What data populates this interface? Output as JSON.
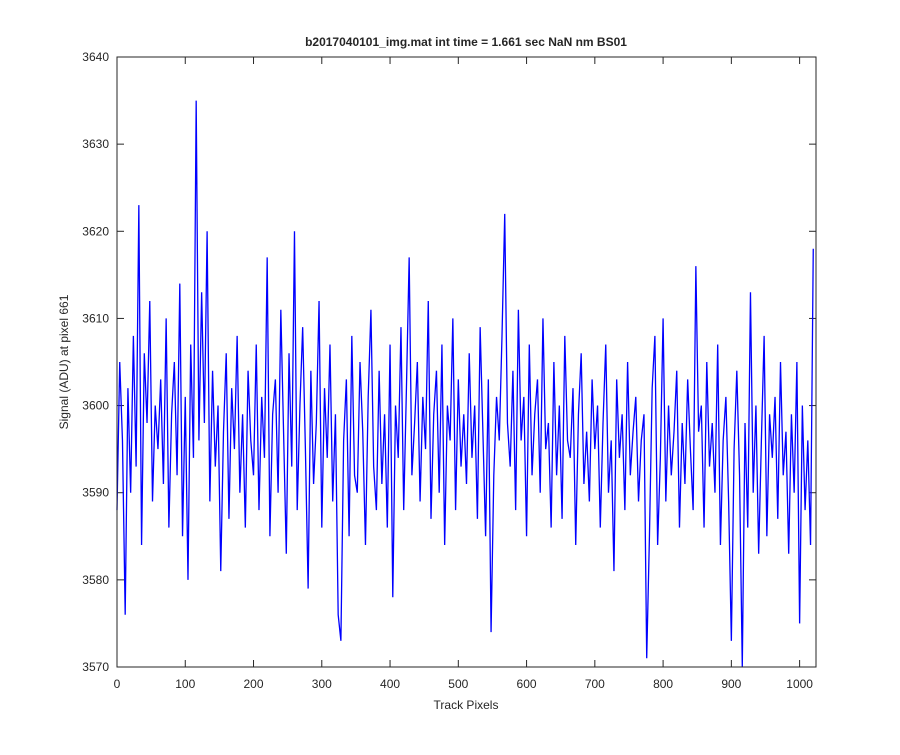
{
  "chart_data": {
    "type": "line",
    "title": "b2017040101_img.mat int time = 1.661 sec  NaN nm BS01",
    "x_label": "Track Pixels",
    "y_label": "Signal (ADU) at pixel 661",
    "xlim": [
      0,
      1024
    ],
    "ylim": [
      3570,
      3640
    ],
    "xticks": [
      0,
      100,
      200,
      300,
      400,
      500,
      600,
      700,
      800,
      900,
      1000
    ],
    "yticks": [
      3570,
      3580,
      3590,
      3600,
      3610,
      3620,
      3630,
      3640
    ],
    "x": [
      0,
      4,
      8,
      12,
      16,
      20,
      24,
      28,
      32,
      36,
      40,
      44,
      48,
      52,
      56,
      60,
      64,
      68,
      72,
      76,
      80,
      84,
      88,
      92,
      96,
      100,
      104,
      108,
      112,
      116,
      120,
      124,
      128,
      132,
      136,
      140,
      144,
      148,
      152,
      156,
      160,
      164,
      168,
      172,
      176,
      180,
      184,
      188,
      192,
      196,
      200,
      204,
      208,
      212,
      216,
      220,
      224,
      228,
      232,
      236,
      240,
      244,
      248,
      252,
      256,
      260,
      264,
      268,
      272,
      276,
      280,
      284,
      288,
      292,
      296,
      300,
      304,
      308,
      312,
      316,
      320,
      324,
      328,
      332,
      336,
      340,
      344,
      348,
      352,
      356,
      360,
      364,
      368,
      372,
      376,
      380,
      384,
      388,
      392,
      396,
      400,
      404,
      408,
      412,
      416,
      420,
      424,
      428,
      432,
      436,
      440,
      444,
      448,
      452,
      456,
      460,
      464,
      468,
      472,
      476,
      480,
      484,
      488,
      492,
      496,
      500,
      504,
      508,
      512,
      516,
      520,
      524,
      528,
      532,
      536,
      540,
      544,
      548,
      552,
      556,
      560,
      564,
      568,
      572,
      576,
      580,
      584,
      588,
      592,
      596,
      600,
      604,
      608,
      612,
      616,
      620,
      624,
      628,
      632,
      636,
      640,
      644,
      648,
      652,
      656,
      660,
      664,
      668,
      672,
      676,
      680,
      684,
      688,
      692,
      696,
      700,
      704,
      708,
      712,
      716,
      720,
      724,
      728,
      732,
      736,
      740,
      744,
      748,
      752,
      756,
      760,
      764,
      768,
      772,
      776,
      780,
      784,
      788,
      792,
      796,
      800,
      804,
      808,
      812,
      816,
      820,
      824,
      828,
      832,
      836,
      840,
      844,
      848,
      852,
      856,
      860,
      864,
      868,
      872,
      876,
      880,
      884,
      888,
      892,
      896,
      900,
      904,
      908,
      912,
      916,
      920,
      924,
      928,
      932,
      936,
      940,
      944,
      948,
      952,
      956,
      960,
      964,
      968,
      972,
      976,
      980,
      984,
      988,
      992,
      996,
      1000,
      1004,
      1008,
      1012,
      1016,
      1020
    ],
    "series": [
      {
        "color": "#0000ff",
        "values": [
          3588,
          3605,
          3596,
          3576,
          3602,
          3590,
          3608,
          3593,
          3623,
          3584,
          3606,
          3598,
          3612,
          3589,
          3600,
          3595,
          3603,
          3591,
          3610,
          3586,
          3599,
          3605,
          3592,
          3614,
          3585,
          3601,
          3580,
          3607,
          3594,
          3635,
          3596,
          3613,
          3598,
          3620,
          3589,
          3604,
          3593,
          3600,
          3581,
          3597,
          3606,
          3587,
          3602,
          3595,
          3608,
          3590,
          3599,
          3586,
          3604,
          3596,
          3592,
          3607,
          3588,
          3601,
          3594,
          3617,
          3585,
          3599,
          3603,
          3590,
          3611,
          3597,
          3583,
          3606,
          3593,
          3620,
          3588,
          3600,
          3609,
          3595,
          3579,
          3604,
          3591,
          3598,
          3612,
          3586,
          3602,
          3594,
          3607,
          3589,
          3599,
          3576,
          3573,
          3596,
          3603,
          3585,
          3608,
          3592,
          3590,
          3605,
          3597,
          3584,
          3601,
          3611,
          3593,
          3588,
          3604,
          3591,
          3599,
          3586,
          3607,
          3578,
          3600,
          3594,
          3609,
          3588,
          3602,
          3617,
          3592,
          3598,
          3605,
          3589,
          3601,
          3595,
          3612,
          3587,
          3599,
          3604,
          3590,
          3607,
          3584,
          3600,
          3596,
          3610,
          3588,
          3603,
          3593,
          3599,
          3591,
          3606,
          3594,
          3600,
          3587,
          3609,
          3597,
          3585,
          3603,
          3574,
          3592,
          3601,
          3596,
          3608,
          3622,
          3598,
          3593,
          3604,
          3588,
          3611,
          3596,
          3601,
          3585,
          3607,
          3592,
          3599,
          3603,
          3590,
          3610,
          3595,
          3598,
          3586,
          3605,
          3592,
          3600,
          3587,
          3608,
          3596,
          3594,
          3602,
          3584,
          3599,
          3606,
          3591,
          3597,
          3589,
          3603,
          3595,
          3600,
          3586,
          3598,
          3607,
          3590,
          3596,
          3581,
          3603,
          3594,
          3599,
          3588,
          3605,
          3592,
          3597,
          3601,
          3589,
          3596,
          3599,
          3571,
          3585,
          3602,
          3608,
          3584,
          3594,
          3610,
          3589,
          3600,
          3592,
          3597,
          3604,
          3586,
          3598,
          3591,
          3603,
          3595,
          3588,
          3616,
          3597,
          3600,
          3586,
          3605,
          3593,
          3598,
          3590,
          3607,
          3584,
          3596,
          3601,
          3589,
          3573,
          3595,
          3604,
          3592,
          3570,
          3598,
          3586,
          3613,
          3590,
          3600,
          3583,
          3596,
          3608,
          3585,
          3599,
          3594,
          3601,
          3587,
          3605,
          3592,
          3597,
          3583,
          3599,
          3590,
          3605,
          3575,
          3600,
          3588,
          3596,
          3584,
          3618
        ]
      }
    ]
  }
}
